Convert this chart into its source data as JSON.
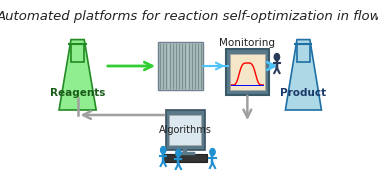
{
  "title": "Automated platforms for reaction self-optimization in flow",
  "title_fontsize": 9.5,
  "title_color": "#222222",
  "background_color": "#ffffff",
  "reagents_label": "Reagents",
  "product_label": "Product",
  "monitoring_label": "Monitoring",
  "algorithms_label": "Algorithms",
  "flask_reagents_color": "#90ee90",
  "flask_reagents_edge": "#228B22",
  "flask_product_color": "#add8e6",
  "flask_product_edge": "#1e6fa5",
  "arrow_green": "#32cd32",
  "arrow_blue": "#4fc3f7",
  "arrow_gray": "#a0a0a0",
  "reactor_color": "#b0c4c4",
  "reactor_edge": "#708090",
  "monitor_screen_color": "#f5e6c8",
  "monitor_frame_color": "#5a7a8a"
}
